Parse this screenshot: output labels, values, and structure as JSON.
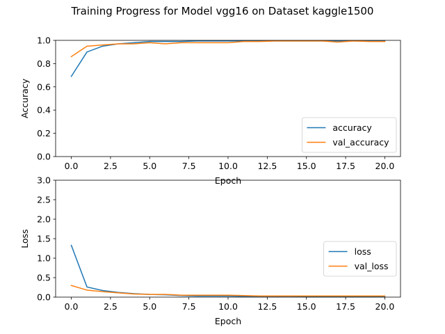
{
  "figure": {
    "title": "Training Progress for Model vgg16 on Dataset kaggle1500"
  },
  "chart_data": [
    {
      "type": "line",
      "xlabel": "Epoch",
      "ylabel": "Accuracy",
      "xlim": [
        -1,
        21
      ],
      "ylim": [
        0.0,
        1.0
      ],
      "xticks": [
        0.0,
        2.5,
        5.0,
        7.5,
        10.0,
        12.5,
        15.0,
        17.5,
        20.0
      ],
      "xtick_labels": [
        "0.0",
        "2.5",
        "5.0",
        "7.5",
        "10.0",
        "12.5",
        "15.0",
        "17.5",
        "20.0"
      ],
      "yticks": [
        0.0,
        0.2,
        0.4,
        0.6,
        0.8,
        1.0
      ],
      "ytick_labels": [
        "0.0",
        "0.2",
        "0.4",
        "0.6",
        "0.8",
        "1.0"
      ],
      "grid": false,
      "legend": "lower-right",
      "x": [
        0,
        1,
        2,
        3,
        4,
        5,
        6,
        7,
        8,
        9,
        10,
        11,
        12,
        13,
        14,
        15,
        16,
        17,
        18,
        19,
        20
      ],
      "series": [
        {
          "name": "accuracy",
          "color": "#1f77b4",
          "values": [
            0.69,
            0.9,
            0.95,
            0.97,
            0.98,
            0.99,
            0.99,
            0.99,
            0.995,
            0.995,
            0.995,
            0.995,
            0.995,
            0.995,
            0.995,
            0.995,
            0.995,
            0.995,
            0.995,
            0.995,
            0.995
          ]
        },
        {
          "name": "val_accuracy",
          "color": "#ff7f0e",
          "values": [
            0.86,
            0.95,
            0.96,
            0.97,
            0.97,
            0.98,
            0.97,
            0.98,
            0.98,
            0.98,
            0.98,
            0.99,
            0.99,
            0.995,
            0.995,
            0.995,
            0.995,
            0.985,
            0.995,
            0.99,
            0.99
          ]
        }
      ]
    },
    {
      "type": "line",
      "xlabel": "Epoch",
      "ylabel": "Loss",
      "xlim": [
        -1,
        21
      ],
      "ylim": [
        0.0,
        3.0
      ],
      "xticks": [
        0.0,
        2.5,
        5.0,
        7.5,
        10.0,
        12.5,
        15.0,
        17.5,
        20.0
      ],
      "xtick_labels": [
        "0.0",
        "2.5",
        "5.0",
        "7.5",
        "10.0",
        "12.5",
        "15.0",
        "17.5",
        "20.0"
      ],
      "yticks": [
        0.0,
        0.5,
        1.0,
        1.5,
        2.0,
        2.5,
        3.0
      ],
      "ytick_labels": [
        "0.0",
        "0.5",
        "1.0",
        "1.5",
        "2.0",
        "2.5",
        "3.0"
      ],
      "grid": false,
      "legend": "right",
      "x": [
        0,
        1,
        2,
        3,
        4,
        5,
        6,
        7,
        8,
        9,
        10,
        11,
        12,
        13,
        14,
        15,
        16,
        17,
        18,
        19,
        20
      ],
      "series": [
        {
          "name": "loss",
          "color": "#1f77b4",
          "values": [
            1.33,
            0.26,
            0.17,
            0.12,
            0.09,
            0.07,
            0.06,
            0.04,
            0.03,
            0.03,
            0.03,
            0.02,
            0.02,
            0.02,
            0.02,
            0.01,
            0.01,
            0.01,
            0.01,
            0.01,
            0.01
          ]
        },
        {
          "name": "val_loss",
          "color": "#ff7f0e",
          "values": [
            0.3,
            0.18,
            0.14,
            0.11,
            0.08,
            0.07,
            0.07,
            0.05,
            0.05,
            0.05,
            0.05,
            0.04,
            0.03,
            0.03,
            0.03,
            0.03,
            0.03,
            0.03,
            0.03,
            0.03,
            0.03
          ]
        }
      ]
    }
  ]
}
